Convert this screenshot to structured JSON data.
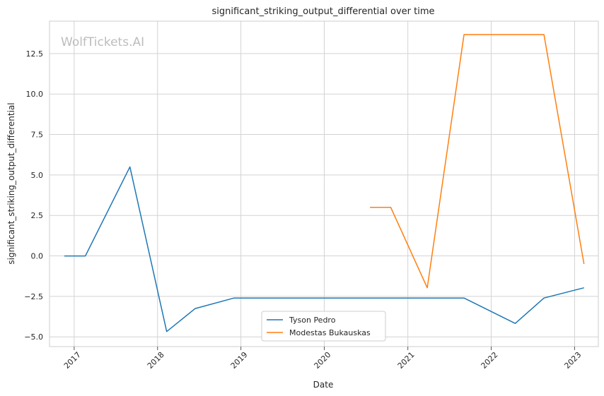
{
  "chart_data": {
    "type": "line",
    "title": "significant_striking_output_differential over time",
    "xlabel": "Date",
    "ylabel": "significant_striking_output_differential",
    "watermark": "WolfTickets.AI",
    "x_tick_labels": [
      "2017",
      "2018",
      "2019",
      "2020",
      "2021",
      "2022",
      "2023"
    ],
    "y_tick_labels": [
      "−5.0",
      "−2.5",
      "0.0",
      "2.5",
      "5.0",
      "7.5",
      "10.0",
      "12.5"
    ],
    "y_ticks": [
      -5.0,
      -2.5,
      0.0,
      2.5,
      5.0,
      7.5,
      10.0,
      12.5
    ],
    "ylim": [
      -5.6,
      14.5
    ],
    "xlim": [
      "2016-09-15",
      "2023-04-15"
    ],
    "grid": true,
    "legend_position": "bottom-center",
    "series": [
      {
        "name": "Tyson Pedro",
        "color": "#1f77b4",
        "points": [
          {
            "x": "2016-11-19",
            "y": 0.0
          },
          {
            "x": "2017-02-19",
            "y": 0.0
          },
          {
            "x": "2017-09-02",
            "y": 5.5
          },
          {
            "x": "2018-02-10",
            "y": -4.67
          },
          {
            "x": "2018-06-15",
            "y": -3.25
          },
          {
            "x": "2018-12-02",
            "y": -2.6
          },
          {
            "x": "2021-09-04",
            "y": -2.6
          },
          {
            "x": "2022-04-16",
            "y": -4.17
          },
          {
            "x": "2022-08-20",
            "y": -2.6
          },
          {
            "x": "2023-02-11",
            "y": -1.97
          }
        ]
      },
      {
        "name": "Modestas Bukauskas",
        "color": "#ff7f0e",
        "points": [
          {
            "x": "2020-07-19",
            "y": 3.0
          },
          {
            "x": "2020-10-18",
            "y": 3.0
          },
          {
            "x": "2021-03-27",
            "y": -1.97
          },
          {
            "x": "2021-09-04",
            "y": 13.67
          },
          {
            "x": "2022-08-20",
            "y": 13.67
          },
          {
            "x": "2023-02-11",
            "y": -0.5
          }
        ]
      }
    ]
  }
}
